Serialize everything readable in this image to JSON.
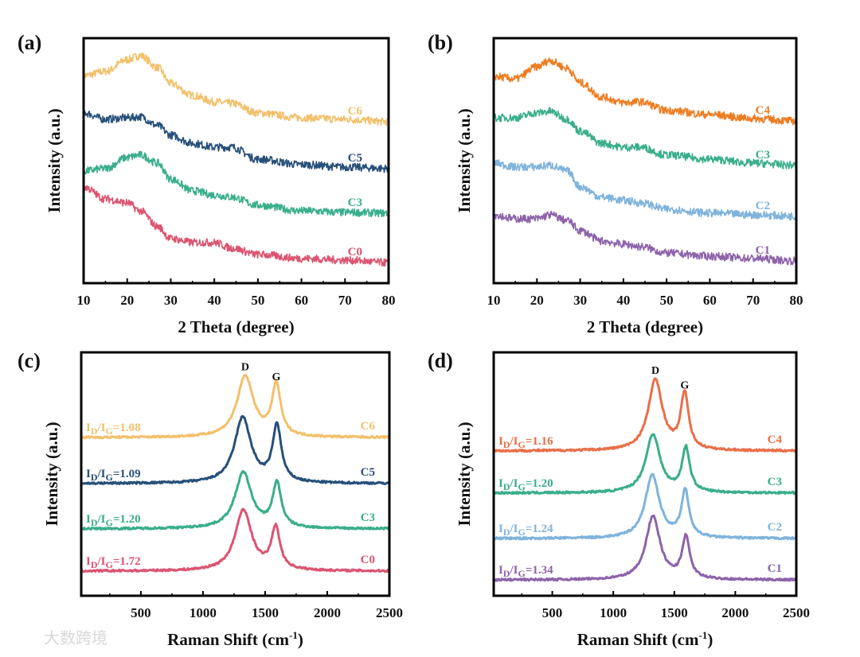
{
  "watermark": "大数跨境",
  "chart_data": [
    {
      "panel": "(a)",
      "type": "line",
      "xlabel": "2 Theta (degree)",
      "ylabel": "Intensity (a.u.)",
      "xlim": [
        10,
        80
      ],
      "ylim": [
        0,
        100
      ],
      "xticks": [
        10,
        20,
        30,
        40,
        50,
        60,
        70,
        80
      ],
      "x": [
        10,
        15,
        20,
        23,
        27,
        30,
        35,
        40,
        44,
        50,
        60,
        70,
        80
      ],
      "series": [
        {
          "name": "C6",
          "color": "#f3c06a",
          "values": [
            84.7,
            86.4,
            91.2,
            92.9,
            88.0,
            81.5,
            76.6,
            74.0,
            73.4,
            69.5,
            67.5,
            66.9,
            65.9
          ]
        },
        {
          "name": "C5",
          "color": "#27507a",
          "values": [
            69.5,
            66.9,
            67.5,
            67.9,
            64.3,
            60.4,
            57.1,
            55.5,
            55.5,
            50.6,
            48.4,
            47.4,
            46.8
          ]
        },
        {
          "name": "C3",
          "color": "#3aae8c",
          "values": [
            45.8,
            46.8,
            51.3,
            52.3,
            49.0,
            42.5,
            37.7,
            36.0,
            35.1,
            31.8,
            29.5,
            28.9,
            28.6
          ]
        },
        {
          "name": "C0",
          "color": "#db5470",
          "values": [
            39.3,
            34.4,
            32.8,
            29.5,
            23.1,
            18.2,
            16.6,
            16.6,
            14.3,
            11.7,
            10.1,
            9.4,
            8.4
          ]
        }
      ]
    },
    {
      "panel": "(b)",
      "type": "line",
      "xlabel": "2 Theta (degree)",
      "ylabel": "Intensity (a.u.)",
      "xlim": [
        10,
        80
      ],
      "ylim": [
        0,
        100
      ],
      "xticks": [
        10,
        20,
        30,
        40,
        50,
        60,
        70,
        80
      ],
      "x": [
        10,
        15,
        20,
        23,
        27,
        30,
        35,
        40,
        44,
        50,
        60,
        70,
        80
      ],
      "series": [
        {
          "name": "C4",
          "color": "#ee7d22",
          "values": [
            84.4,
            83.4,
            88.3,
            90.9,
            87.7,
            81.8,
            76.0,
            73.7,
            74.0,
            70.5,
            68.8,
            67.2,
            66.2
          ]
        },
        {
          "name": "C3",
          "color": "#3aae8c",
          "values": [
            67.5,
            67.5,
            69.5,
            70.1,
            66.9,
            62.0,
            57.1,
            55.5,
            55.5,
            52.3,
            50.6,
            49.0,
            48.1
          ]
        },
        {
          "name": "C2",
          "color": "#7fb3dc",
          "values": [
            49.0,
            47.4,
            47.4,
            48.1,
            45.8,
            39.3,
            35.1,
            33.8,
            32.8,
            30.2,
            28.6,
            27.9,
            27.3
          ]
        },
        {
          "name": "C1",
          "color": "#8e63aa",
          "values": [
            27.9,
            26.3,
            26.3,
            27.9,
            25.6,
            21.4,
            17.2,
            15.9,
            14.9,
            12.3,
            11.0,
            10.1,
            9.1
          ]
        }
      ]
    },
    {
      "panel": "(c)",
      "type": "line",
      "xlabel": "Raman Shift (cm",
      "xlabel_sup": "-1",
      "xlabel_end": ")",
      "ylabel": "Intensity (a.u.)",
      "xlim": [
        20,
        2500
      ],
      "ylim": [
        0,
        100
      ],
      "xticks": [
        500,
        1000,
        1500,
        2000,
        2500
      ],
      "peak_labels": [
        {
          "text": "D",
          "x": 1340
        },
        {
          "text": "G",
          "x": 1590
        }
      ],
      "ratio_symbol": {
        "main": "I",
        "sub1": "D",
        "sub2": "G"
      },
      "series": [
        {
          "name": "C6",
          "color": "#f3c06a",
          "ratio": "1.08",
          "baseline": 65.0,
          "D_pos": 1340,
          "D_height": 25,
          "G_pos": 1590,
          "G_height": 21
        },
        {
          "name": "C5",
          "color": "#27507a",
          "ratio": "1.09",
          "baseline": 46.1,
          "D_pos": 1320,
          "D_height": 27,
          "G_pos": 1595,
          "G_height": 23
        },
        {
          "name": "C3",
          "color": "#3aae8c",
          "ratio": "1.20",
          "baseline": 27.5,
          "D_pos": 1325,
          "D_height": 23,
          "G_pos": 1595,
          "G_height": 18
        },
        {
          "name": "C0",
          "color": "#db5470",
          "ratio": "1.72",
          "baseline": 10.1,
          "D_pos": 1325,
          "D_height": 25,
          "G_pos": 1585,
          "G_height": 17
        }
      ]
    },
    {
      "panel": "(d)",
      "type": "line",
      "xlabel": "Raman Shift (cm",
      "xlabel_sup": "-1",
      "xlabel_end": ")",
      "ylabel": "Intensity (a.u.)",
      "xlim": [
        20,
        2500
      ],
      "ylim": [
        0,
        100
      ],
      "xticks": [
        500,
        1000,
        1500,
        2000,
        2500
      ],
      "peak_labels": [
        {
          "text": "D",
          "x": 1345
        },
        {
          "text": "G",
          "x": 1585
        }
      ],
      "ratio_symbol": {
        "main": "I",
        "sub1": "D",
        "sub2": "G"
      },
      "series": [
        {
          "name": "C4",
          "color": "#ea6e48",
          "ratio": "1.16",
          "baseline": 59.5,
          "D_pos": 1345,
          "D_height": 29,
          "G_pos": 1585,
          "G_height": 23
        },
        {
          "name": "C3",
          "color": "#3aae8c",
          "ratio": "1.20",
          "baseline": 42.2,
          "D_pos": 1325,
          "D_height": 24,
          "G_pos": 1595,
          "G_height": 18
        },
        {
          "name": "C2",
          "color": "#7fb3dc",
          "ratio": "1.24",
          "baseline": 23.5,
          "D_pos": 1320,
          "D_height": 26,
          "G_pos": 1590,
          "G_height": 19
        },
        {
          "name": "C1",
          "color": "#8e63aa",
          "ratio": "1.34",
          "baseline": 6.5,
          "D_pos": 1325,
          "D_height": 26,
          "G_pos": 1595,
          "G_height": 17
        }
      ]
    }
  ]
}
